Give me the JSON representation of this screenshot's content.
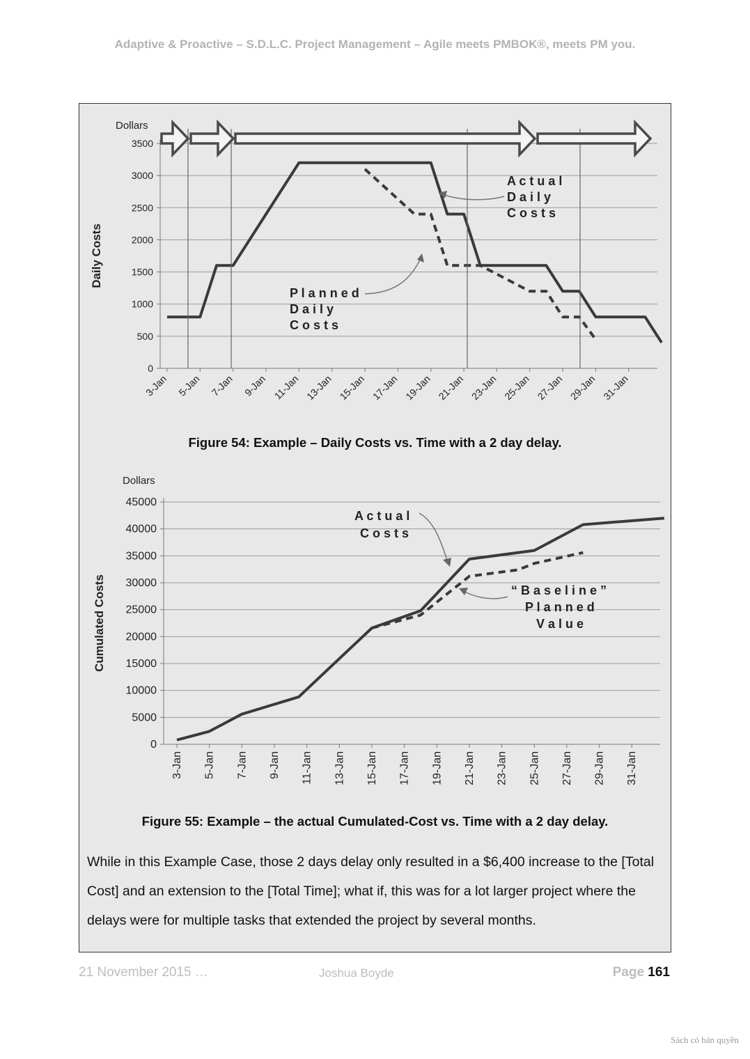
{
  "header": "Adaptive & Proactive – S.D.L.C. Project Management – Agile meets PMBOK®, meets PM you.",
  "figure54": {
    "caption": "Figure 54: Example – Daily Costs vs. Time with a 2 day delay.",
    "chart_data": {
      "type": "line",
      "title": "",
      "ylabel": "Daily Costs",
      "yunit": "Dollars",
      "ylim": [
        0,
        3500
      ],
      "yticks": [
        "0",
        "500",
        "1000",
        "1500",
        "2000",
        "2500",
        "3000",
        "3500"
      ],
      "xtick_labels": [
        "3-Jan",
        "5-Jan",
        "7-Jan",
        "9-Jan",
        "11-Jan",
        "13-Jan",
        "15-Jan",
        "17-Jan",
        "19-Jan",
        "21-Jan",
        "23-Jan",
        "25-Jan",
        "27-Jan",
        "29-Jan",
        "31-Jan"
      ],
      "x_day_range": [
        3,
        32
      ],
      "grid": true,
      "series": [
        {
          "name": "Actual Daily Costs",
          "style": "solid",
          "x": [
            3,
            5,
            6,
            7,
            11,
            19,
            20,
            21,
            22,
            26,
            27,
            28,
            29,
            32,
            33
          ],
          "y": [
            800,
            800,
            1600,
            1600,
            3200,
            3200,
            2400,
            2400,
            1600,
            1600,
            1200,
            1200,
            800,
            800,
            400
          ]
        },
        {
          "name": "Planned Daily Costs",
          "style": "dashed",
          "x": [
            15,
            18,
            19,
            20,
            22,
            25,
            26,
            27,
            28,
            29
          ],
          "y": [
            3100,
            2400,
            2400,
            1600,
            1600,
            1200,
            1200,
            800,
            800,
            450
          ]
        }
      ],
      "annotations": [
        {
          "text": [
            "A c t u a l",
            "D a i l y",
            "C o s t s"
          ]
        },
        {
          "text": [
            "P l a n n e d",
            "D a i l y",
            "C o s t s"
          ]
        }
      ]
    }
  },
  "figure55": {
    "caption": "Figure 55: Example – the actual Cumulated-Cost vs. Time with a 2 day delay.",
    "chart_data": {
      "type": "line",
      "title": "",
      "ylabel": "Cumulated Costs",
      "yunit": "Dollars",
      "ylim": [
        0,
        45000
      ],
      "yticks": [
        "0",
        "5000",
        "10000",
        "15000",
        "20000",
        "25000",
        "30000",
        "35000",
        "40000",
        "45000"
      ],
      "xtick_labels": [
        "3-Jan",
        "5-Jan",
        "7-Jan",
        "9-Jan",
        "11-Jan",
        "13-Jan",
        "15-Jan",
        "17-Jan",
        "19-Jan",
        "21-Jan",
        "23-Jan",
        "25-Jan",
        "27-Jan",
        "29-Jan",
        "31-Jan"
      ],
      "x_day_range": [
        3,
        32
      ],
      "grid": true,
      "series": [
        {
          "name": "Actual Costs",
          "style": "solid",
          "x": [
            3,
            5,
            7,
            10.5,
            15,
            18,
            19,
            21,
            25,
            28,
            33
          ],
          "y": [
            800,
            2400,
            5600,
            8800,
            21600,
            24800,
            28000,
            34400,
            36000,
            40800,
            42000
          ]
        },
        {
          "name": "\"Baseline\" Planned Value",
          "style": "dashed",
          "x": [
            15,
            18,
            19,
            21,
            24,
            25,
            28
          ],
          "y": [
            21600,
            24000,
            26400,
            31200,
            32400,
            33600,
            35600
          ]
        }
      ],
      "annotations": [
        {
          "text": [
            "A c t u a l",
            "C o s t s"
          ]
        },
        {
          "text": [
            "“ B a s e l i n e ”",
            "P l a n n e d",
            "V a l u e"
          ]
        }
      ]
    }
  },
  "body_text": "While in this Example Case, those 2 days delay only resulted in a $6,400 increase to the [Total Cost] and an extension to the [Total Time]; what if, this was for a lot larger project where the delays were for multiple tasks that extended the project by several months.",
  "footer": {
    "date": "21 November 2015 …",
    "author": "Joshua Boyde",
    "page_label": "Page",
    "page_number": "161"
  },
  "watermark": "Sách có bản quyền"
}
